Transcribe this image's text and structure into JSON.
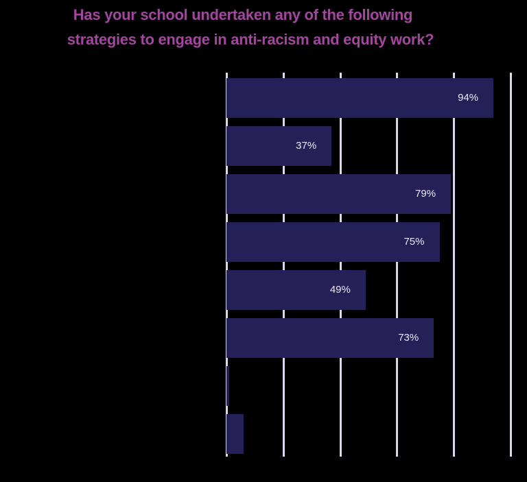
{
  "chart_data": {
    "type": "bar",
    "orientation": "horizontal",
    "title": "Has your school undertaken any of the following strategies to engage in anti-racism and equity work?",
    "title_lines": [
      "Has your school undertaken any of the following",
      "strategies to engage in anti-racism and equity work?"
    ],
    "categories": [
      "",
      "",
      "",
      "",
      "",
      "",
      "",
      ""
    ],
    "values": [
      94,
      37,
      79,
      75,
      49,
      73,
      1,
      6
    ],
    "labels": [
      "94%",
      "37%",
      "79%",
      "75%",
      "49%",
      "73%",
      "",
      ""
    ],
    "xlim": [
      0,
      100
    ],
    "gridlines": [
      0,
      20,
      40,
      60,
      80,
      100
    ],
    "grid": true,
    "legend": null,
    "xlabel": "",
    "ylabel": "",
    "colors": {
      "bar": "#252058",
      "title": "#a3479e",
      "grid": "#dcd8ee",
      "label": "#ece8f5",
      "background": "#000000"
    }
  }
}
